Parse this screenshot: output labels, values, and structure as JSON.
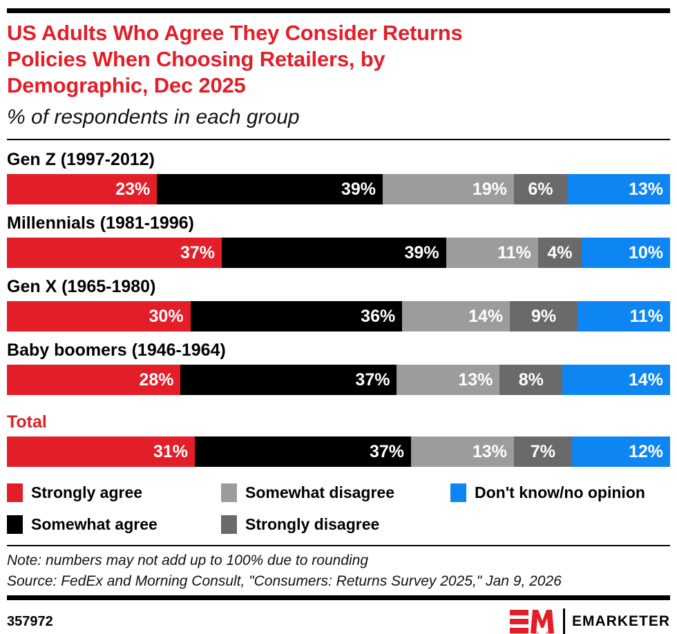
{
  "colors": {
    "red": "#e31e28",
    "black": "#000000",
    "light_gray": "#9c9c9c",
    "dark_gray": "#6a6a6a",
    "blue": "#0d86f4"
  },
  "header": {
    "title_lines": [
      "US Adults Who Agree They Consider Returns",
      "Policies When Choosing Retailers, by",
      "Demographic, Dec 2025"
    ],
    "subtitle": "% of respondents in each group"
  },
  "chart_data": {
    "type": "bar",
    "orientation": "horizontal",
    "stacked": true,
    "value_suffix": "%",
    "xlim": [
      0,
      100
    ],
    "categories": [
      "Gen Z (1997-2012)",
      "Millennials (1981-1996)",
      "Gen X (1965-1980)",
      "Baby boomers (1946-1964)",
      "Total"
    ],
    "highlight_category": "Total",
    "series": [
      {
        "name": "Strongly agree",
        "color": "#e31e28",
        "values": [
          23,
          37,
          30,
          28,
          31
        ]
      },
      {
        "name": "Somewhat agree",
        "color": "#000000",
        "values": [
          39,
          39,
          36,
          37,
          37
        ]
      },
      {
        "name": "Somewhat disagree",
        "color": "#9c9c9c",
        "values": [
          19,
          11,
          14,
          13,
          13
        ]
      },
      {
        "name": "Strongly disagree",
        "color": "#6a6a6a",
        "values": [
          6,
          4,
          9,
          8,
          7
        ]
      },
      {
        "name": "Don't know/no opinion",
        "color": "#0d86f4",
        "values": [
          13,
          10,
          11,
          14,
          12
        ]
      }
    ]
  },
  "legend": {
    "items": [
      {
        "label": "Strongly agree",
        "color": "#e31e28"
      },
      {
        "label": "Somewhat disagree",
        "color": "#9c9c9c"
      },
      {
        "label": "Don't know/no opinion",
        "color": "#0d86f4"
      },
      {
        "label": "Somewhat agree",
        "color": "#000000"
      },
      {
        "label": "Strongly disagree",
        "color": "#6a6a6a"
      }
    ]
  },
  "notes": {
    "note": "Note: numbers may not add up to 100% due to rounding",
    "source": "Source: FedEx and Morning Consult, \"Consumers: Returns Survey 2025,\" Jan 9, 2026"
  },
  "footer": {
    "chart_id": "357972",
    "brand": "EMARKETER"
  }
}
